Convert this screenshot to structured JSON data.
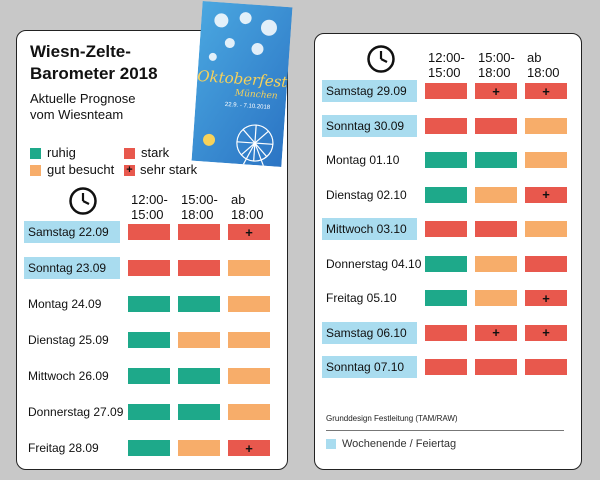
{
  "title_line1": "Wiesn-Zelte-",
  "title_line2": "Barometer 2018",
  "subtitle_line1": "Aktuelle Prognose",
  "subtitle_line2": "vom Wiesnteam",
  "legend": {
    "ruhig": "ruhig",
    "gut": "gut besucht",
    "stark": "stark",
    "sehr_stark": "sehr stark",
    "plus_symbol": "+"
  },
  "headers": [
    {
      "line1": "12:00-",
      "line2": "15:00"
    },
    {
      "line1": "15:00-",
      "line2": "18:00"
    },
    {
      "line1": "ab",
      "line2": "18:00"
    }
  ],
  "poster": {
    "title": "Oktoberfest",
    "city": "München",
    "dates": "22.9. - 7.10.2018"
  },
  "colors": {
    "ruhig": "#1ea98a",
    "gut": "#f7ad6a",
    "stark": "#e8584d",
    "weekend": "#a9dcef"
  },
  "left_days": [
    {
      "label": "Samstag 22.09",
      "weekend": true,
      "slots": [
        "stark",
        "stark",
        "sehr_stark"
      ]
    },
    {
      "label": "Sonntag 23.09",
      "weekend": true,
      "slots": [
        "stark",
        "stark",
        "gut"
      ]
    },
    {
      "label": "Montag 24.09",
      "weekend": false,
      "slots": [
        "ruhig",
        "ruhig",
        "gut"
      ]
    },
    {
      "label": "Dienstag 25.09",
      "weekend": false,
      "slots": [
        "ruhig",
        "gut",
        "gut"
      ]
    },
    {
      "label": "Mittwoch 26.09",
      "weekend": false,
      "slots": [
        "ruhig",
        "ruhig",
        "gut"
      ]
    },
    {
      "label": "Donnerstag 27.09",
      "weekend": false,
      "slots": [
        "ruhig",
        "ruhig",
        "gut"
      ]
    },
    {
      "label": "Freitag 28.09",
      "weekend": false,
      "slots": [
        "ruhig",
        "gut",
        "sehr_stark"
      ]
    }
  ],
  "right_days": [
    {
      "label": "Samstag 29.09",
      "weekend": true,
      "slots": [
        "stark",
        "sehr_stark",
        "sehr_stark"
      ]
    },
    {
      "label": "Sonntag 30.09",
      "weekend": true,
      "slots": [
        "stark",
        "stark",
        "gut"
      ]
    },
    {
      "label": "Montag 01.10",
      "weekend": false,
      "slots": [
        "ruhig",
        "ruhig",
        "gut"
      ]
    },
    {
      "label": "Dienstag 02.10",
      "weekend": false,
      "slots": [
        "ruhig",
        "gut",
        "sehr_stark"
      ]
    },
    {
      "label": "Mittwoch 03.10",
      "weekend": true,
      "slots": [
        "stark",
        "stark",
        "gut"
      ]
    },
    {
      "label": "Donnerstag 04.10",
      "weekend": false,
      "slots": [
        "ruhig",
        "gut",
        "stark"
      ]
    },
    {
      "label": "Freitag 05.10",
      "weekend": false,
      "slots": [
        "ruhig",
        "gut",
        "sehr_stark"
      ]
    },
    {
      "label": "Samstag 06.10",
      "weekend": true,
      "slots": [
        "stark",
        "sehr_stark",
        "sehr_stark"
      ]
    },
    {
      "label": "Sonntag 07.10",
      "weekend": true,
      "slots": [
        "stark",
        "stark",
        "stark"
      ]
    }
  ],
  "footer": {
    "note": "Grunddesign Festleitung (TAM/RAW)",
    "legend": "Wochenende / Feiertag"
  }
}
